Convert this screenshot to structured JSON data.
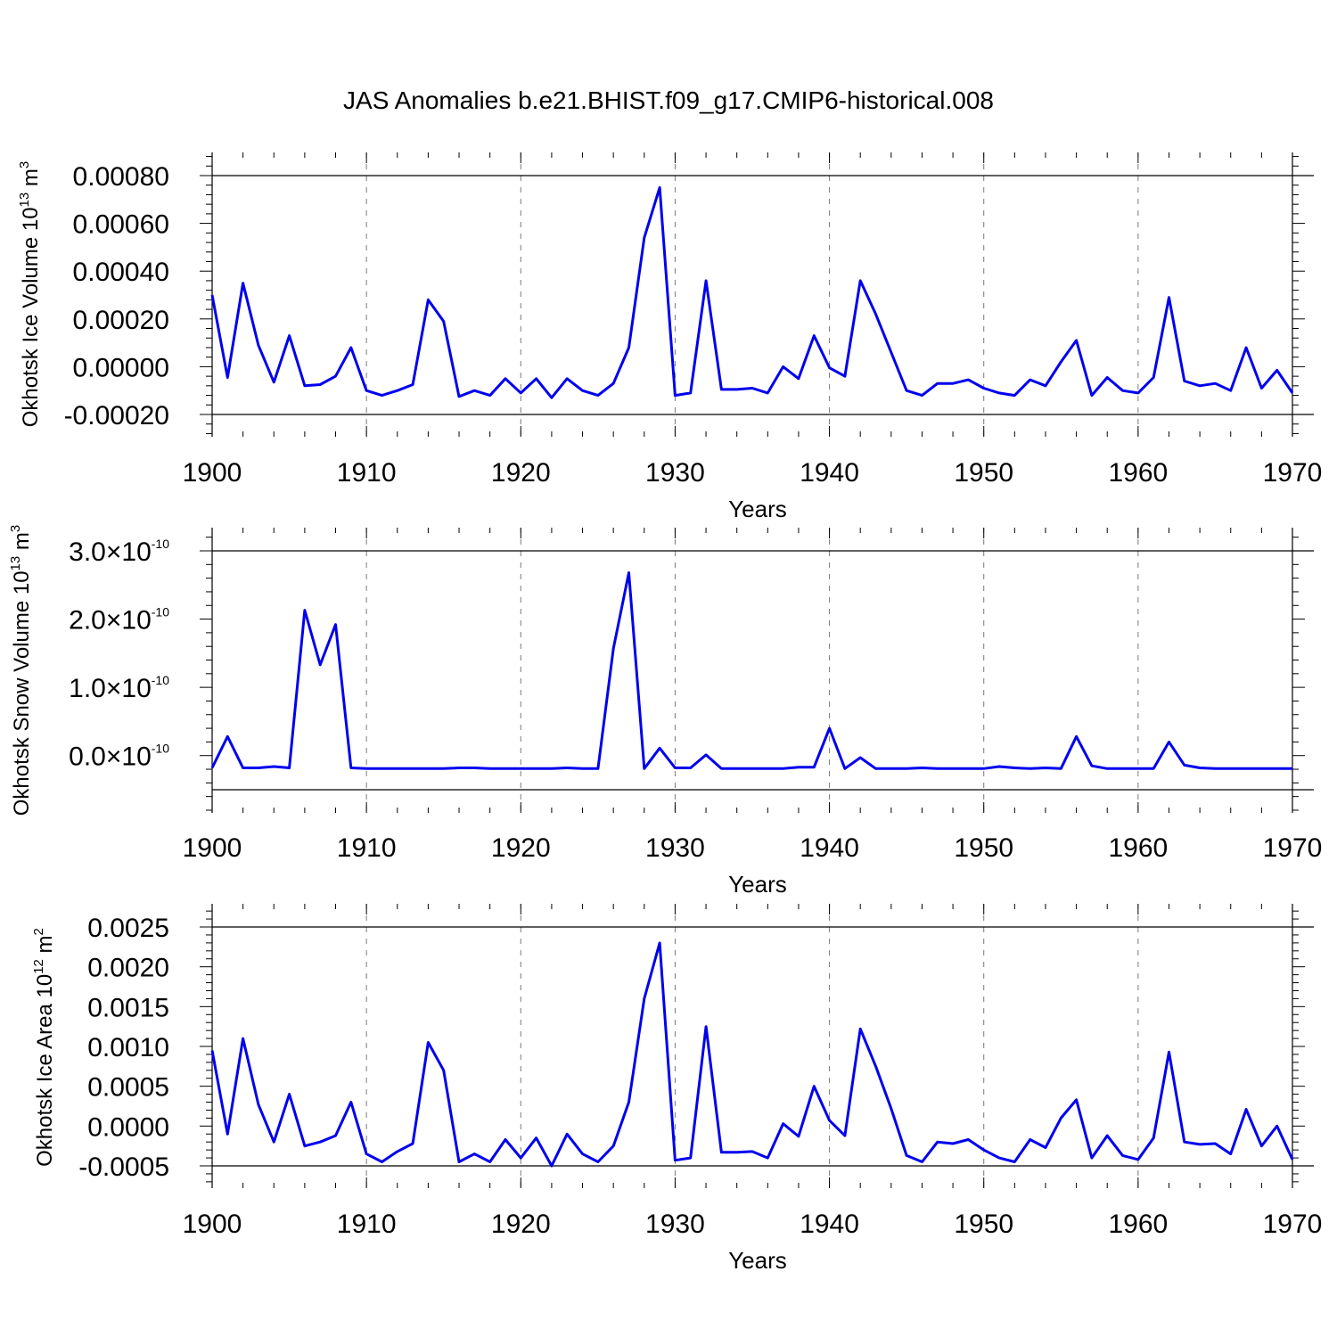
{
  "title": "JAS Anomalies b.e21.BHIST.f09_g17.CMIP6-historical.008",
  "colors": {
    "series": "#0000ee",
    "grid": "#7a7a7a",
    "axis": "#000000"
  },
  "chart_data": [
    {
      "type": "line",
      "xlabel": "Years",
      "ylabel": {
        "text": "Okhotsk Ice Volume 10",
        "sup1": "13",
        "mid": " m",
        "sup2": "3"
      },
      "xlim": [
        1900,
        1970
      ],
      "ylim": [
        -0.0002,
        0.0008
      ],
      "xticks": [
        1900,
        1910,
        1920,
        1930,
        1940,
        1950,
        1960,
        1970
      ],
      "xtick_labels": [
        "1900",
        "1910",
        "1920",
        "1930",
        "1940",
        "1950",
        "1960",
        "1970"
      ],
      "yticks": [
        -0.0002,
        0.0,
        0.0002,
        0.0004,
        0.0006,
        0.0008
      ],
      "ytick_labels": [
        "-0.00020",
        "0.00000",
        "0.00020",
        "0.00040",
        "0.00060",
        "0.00080"
      ],
      "grid": "x-dashed",
      "series": [
        {
          "name": "Okhotsk Ice Volume",
          "x_start": 1900,
          "values": [
            0.0003,
            -4.5e-05,
            0.00035,
            9e-05,
            -6.5e-05,
            0.00013,
            -8e-05,
            -7.5e-05,
            -4e-05,
            8e-05,
            -0.0001,
            -0.00012,
            -0.0001,
            -7.5e-05,
            0.00028,
            0.00019,
            -0.000125,
            -0.0001,
            -0.00012,
            -5e-05,
            -0.00011,
            -5e-05,
            -0.00013,
            -5e-05,
            -0.0001,
            -0.00012,
            -7e-05,
            8e-05,
            0.00054,
            0.00075,
            -0.00012,
            -0.00011,
            0.00036,
            -9.5e-05,
            -9.5e-05,
            -9e-05,
            -0.00011,
            0.0,
            -5e-05,
            0.00013,
            -5e-06,
            -4e-05,
            0.00036,
            0.00022,
            6e-05,
            -0.0001,
            -0.00012,
            -7e-05,
            -7e-05,
            -5.5e-05,
            -9e-05,
            -0.00011,
            -0.00012,
            -5.5e-05,
            -8e-05,
            2e-05,
            0.00011,
            -0.00012,
            -4.5e-05,
            -0.0001,
            -0.00011,
            -4.5e-05,
            0.00029,
            -6e-05,
            -8e-05,
            -7e-05,
            -0.0001,
            8e-05,
            -9e-05,
            -1.5e-05,
            -0.00011
          ]
        }
      ]
    },
    {
      "type": "line",
      "xlabel": "Years",
      "ylabel": {
        "text": "Okhotsk Snow Volume 10",
        "sup1": "13",
        "mid": " m",
        "sup2": "3"
      },
      "xlim": [
        1900,
        1970
      ],
      "ylim": [
        -5e-11,
        3e-10
      ],
      "xticks": [
        1900,
        1910,
        1920,
        1930,
        1940,
        1950,
        1960,
        1970
      ],
      "xtick_labels": [
        "1900",
        "1910",
        "1920",
        "1930",
        "1940",
        "1950",
        "1960",
        "1970"
      ],
      "yticks": [
        0.0,
        1e-10,
        2e-10,
        3e-10
      ],
      "ytick_labels": [
        {
          "mantissa": "0.0",
          "times": "×",
          "base": "10",
          "exp": "-10"
        },
        {
          "mantissa": "1.0",
          "times": "×",
          "base": "10",
          "exp": "-10"
        },
        {
          "mantissa": "2.0",
          "times": "×",
          "base": "10",
          "exp": "-10"
        },
        {
          "mantissa": "3.0",
          "times": "×",
          "base": "10",
          "exp": "-10"
        }
      ],
      "grid": "x-dashed",
      "series": [
        {
          "name": "Okhotsk Snow Volume",
          "x_start": 1900,
          "values": [
            -1.8e-11,
            2.8e-11,
            -1.8e-11,
            -1.8e-11,
            -1.6e-11,
            -1.8e-11,
            2.13e-10,
            1.33e-10,
            1.92e-10,
            -1.8e-11,
            -1.9e-11,
            -1.9e-11,
            -1.9e-11,
            -1.9e-11,
            -1.9e-11,
            -1.9e-11,
            -1.8e-11,
            -1.8e-11,
            -1.9e-11,
            -1.9e-11,
            -1.9e-11,
            -1.9e-11,
            -1.9e-11,
            -1.8e-11,
            -1.9e-11,
            -1.9e-11,
            1.57e-10,
            2.68e-10,
            -1.9e-11,
            1.1e-11,
            -1.8e-11,
            -1.8e-11,
            1e-12,
            -1.9e-11,
            -1.9e-11,
            -1.9e-11,
            -1.9e-11,
            -1.9e-11,
            -1.7e-11,
            -1.7e-11,
            4e-11,
            -1.9e-11,
            -3e-12,
            -1.9e-11,
            -1.9e-11,
            -1.9e-11,
            -1.8e-11,
            -1.9e-11,
            -1.9e-11,
            -1.9e-11,
            -1.9e-11,
            -1.6e-11,
            -1.8e-11,
            -1.9e-11,
            -1.8e-11,
            -1.9e-11,
            2.8e-11,
            -1.5e-11,
            -1.9e-11,
            -1.9e-11,
            -1.9e-11,
            -1.9e-11,
            2e-11,
            -1.4e-11,
            -1.8e-11,
            -1.9e-11,
            -1.9e-11,
            -1.9e-11,
            -1.9e-11,
            -1.9e-11,
            -1.9e-11
          ]
        }
      ]
    },
    {
      "type": "line",
      "xlabel": "Years",
      "ylabel": {
        "text": "Okhotsk Ice Area 10",
        "sup1": "12",
        "mid": " m",
        "sup2": "2"
      },
      "xlim": [
        1900,
        1970
      ],
      "ylim": [
        -0.0005,
        0.0025
      ],
      "xticks": [
        1900,
        1910,
        1920,
        1930,
        1940,
        1950,
        1960,
        1970
      ],
      "xtick_labels": [
        "1900",
        "1910",
        "1920",
        "1930",
        "1940",
        "1950",
        "1960",
        "1970"
      ],
      "yticks": [
        -0.0005,
        0.0,
        0.0005,
        0.001,
        0.0015,
        0.002,
        0.0025
      ],
      "ytick_labels": [
        "-0.0005",
        "0.0000",
        "0.0005",
        "0.0010",
        "0.0015",
        "0.0020",
        "0.0025"
      ],
      "grid": "x-dashed",
      "series": [
        {
          "name": "Okhotsk Ice Area",
          "x_start": 1900,
          "values": [
            0.00095,
            -0.0001,
            0.0011,
            0.00027,
            -0.0002,
            0.0004,
            -0.00025,
            -0.0002,
            -0.00012,
            0.0003,
            -0.00035,
            -0.00045,
            -0.00032,
            -0.00022,
            0.00105,
            0.0007,
            -0.00045,
            -0.00035,
            -0.00045,
            -0.00017,
            -0.0004,
            -0.00015,
            -0.0005,
            -0.0001,
            -0.00035,
            -0.00045,
            -0.00025,
            0.0003,
            0.0016,
            0.0023,
            -0.00043,
            -0.0004,
            0.00125,
            -0.00033,
            -0.00033,
            -0.00032,
            -0.0004,
            3e-05,
            -0.00013,
            0.0005,
            7e-05,
            -0.00012,
            0.00122,
            0.00075,
            0.00022,
            -0.00037,
            -0.00045,
            -0.0002,
            -0.00022,
            -0.00017,
            -0.0003,
            -0.0004,
            -0.00045,
            -0.00017,
            -0.00027,
            0.0001,
            0.00033,
            -0.0004,
            -0.00012,
            -0.00037,
            -0.00042,
            -0.00015,
            0.00093,
            -0.0002,
            -0.00023,
            -0.00022,
            -0.00035,
            0.00021,
            -0.00025,
            0.0,
            -0.00042
          ]
        }
      ]
    }
  ]
}
